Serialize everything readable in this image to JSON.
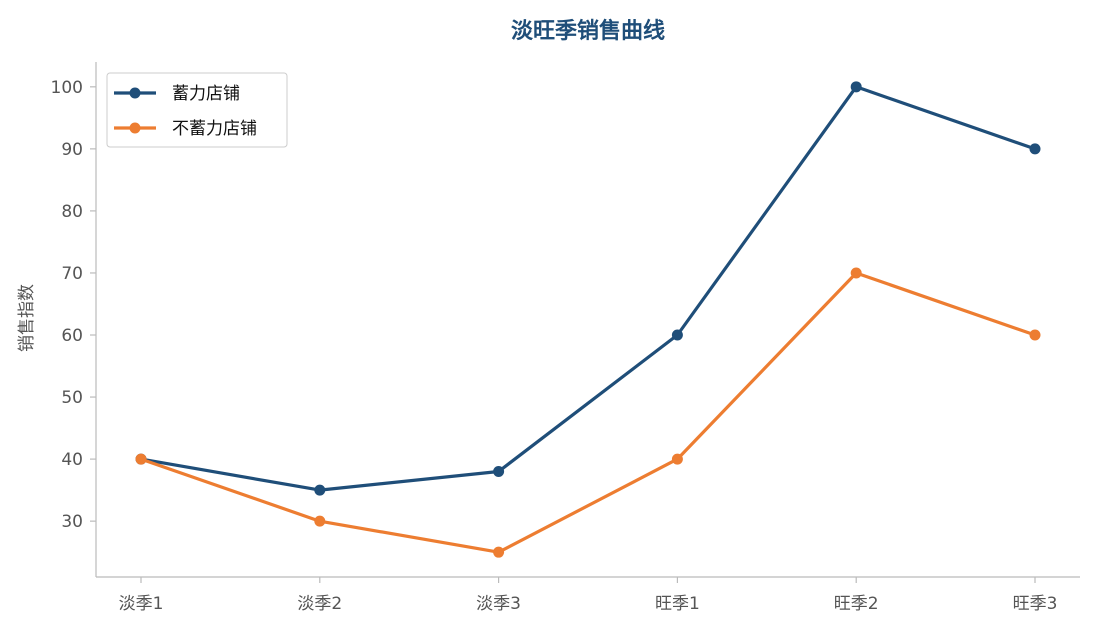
{
  "chart_data": {
    "type": "line",
    "title": "淡旺季销售曲线",
    "xlabel": "",
    "ylabel": "销售指数",
    "categories": [
      "淡季1",
      "淡季2",
      "淡季3",
      "旺季1",
      "旺季2",
      "旺季3"
    ],
    "series": [
      {
        "name": "蓄力店铺",
        "color": "#1f4e79",
        "values": [
          40,
          35,
          38,
          60,
          100,
          90
        ]
      },
      {
        "name": "不蓄力店铺",
        "color": "#ed7d31",
        "values": [
          40,
          30,
          25,
          40,
          70,
          60
        ]
      }
    ],
    "ylim": [
      21,
      104
    ],
    "yticks": [
      30,
      40,
      50,
      60,
      70,
      80,
      90,
      100
    ],
    "grid": false,
    "legend_position": "top-left",
    "title_color": "#1f4e79",
    "axis_color": "#bbbbbb"
  }
}
